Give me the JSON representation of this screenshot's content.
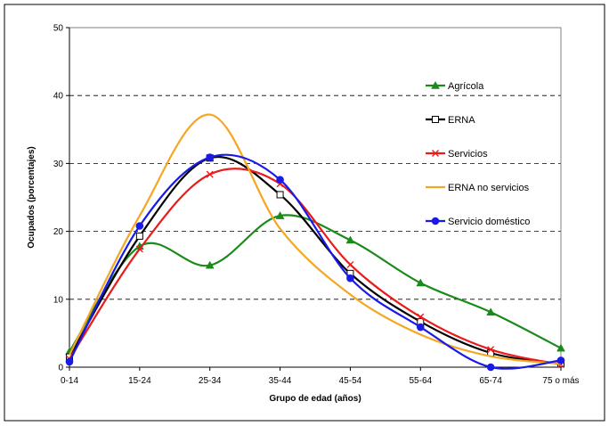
{
  "chart_data": {
    "type": "line",
    "categories": [
      "0-14",
      "15-24",
      "25-34",
      "35-44",
      "45-54",
      "55-64",
      "65-74",
      "75 o más"
    ],
    "xlabel": "Grupo de edad (años)",
    "ylabel": "Ocupados (porcentajes)",
    "ylim": [
      0,
      50
    ],
    "yticks": [
      0,
      10,
      20,
      30,
      40,
      50
    ],
    "grid": "horizontal dashed",
    "legend_position": "right",
    "smooth": true,
    "series": [
      {
        "name": "Agrícola",
        "color": "#1a8a1a",
        "marker": "triangle",
        "values": [
          2.3,
          17.8,
          15.0,
          22.3,
          18.7,
          12.4,
          8.1,
          2.8
        ]
      },
      {
        "name": "ERNA",
        "color": "#000000",
        "marker": "square",
        "values": [
          1.5,
          19.3,
          30.8,
          25.4,
          13.8,
          6.7,
          2.1,
          0.5
        ]
      },
      {
        "name": "Servicios",
        "color": "#e81c1c",
        "marker": "x",
        "values": [
          1.2,
          17.4,
          28.4,
          27.0,
          15.1,
          7.4,
          2.6,
          0.4
        ]
      },
      {
        "name": "ERNA no servicios",
        "color": "#f5a623",
        "marker": "none",
        "values": [
          1.8,
          22.3,
          37.2,
          20.4,
          10.7,
          4.8,
          1.6,
          0.5
        ]
      },
      {
        "name": "Servicio doméstico",
        "color": "#1a1ae8",
        "marker": "circle",
        "values": [
          0.8,
          20.8,
          30.9,
          27.6,
          13.1,
          5.9,
          0.0,
          1.0
        ]
      }
    ]
  }
}
